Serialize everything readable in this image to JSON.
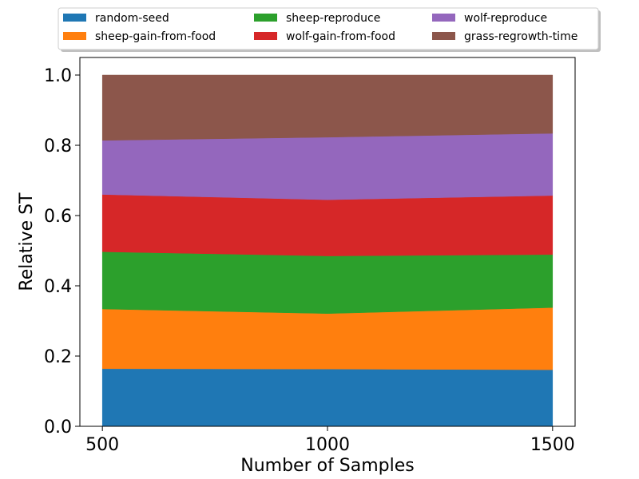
{
  "chart_data": {
    "type": "area",
    "stacked": true,
    "title": "",
    "xlabel": "Number of Samples",
    "ylabel": "Relative ST",
    "x": [
      500,
      1000,
      1500
    ],
    "xticks": [
      500,
      1000,
      1500
    ],
    "xtick_labels": [
      "500",
      "1000",
      "1500"
    ],
    "xlim": [
      450,
      1550
    ],
    "yticks": [
      0.0,
      0.2,
      0.4,
      0.6,
      0.8,
      1.0
    ],
    "ytick_labels": [
      "0.0",
      "0.2",
      "0.4",
      "0.6",
      "0.8",
      "1.0"
    ],
    "ylim": [
      0,
      1.05
    ],
    "grid": false,
    "legend_position": "top-center, above plot",
    "series": [
      {
        "name": "random-seed",
        "color": "#1f77b4",
        "values": [
          0.164,
          0.163,
          0.161
        ]
      },
      {
        "name": "sheep-gain-from-food",
        "color": "#ff7f0e",
        "values": [
          0.17,
          0.158,
          0.177
        ]
      },
      {
        "name": "sheep-reproduce",
        "color": "#2ca02c",
        "values": [
          0.163,
          0.164,
          0.151
        ]
      },
      {
        "name": "wolf-gain-from-food",
        "color": "#d62728",
        "values": [
          0.163,
          0.16,
          0.168
        ]
      },
      {
        "name": "wolf-reproduce",
        "color": "#9467bd",
        "values": [
          0.154,
          0.178,
          0.177
        ]
      },
      {
        "name": "grass-regrowth-time",
        "color": "#8c564b",
        "values": [
          0.186,
          0.177,
          0.166
        ]
      }
    ]
  }
}
